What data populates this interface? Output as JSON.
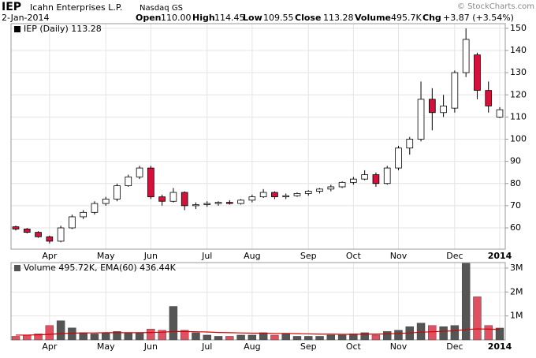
{
  "header": {
    "symbol": "IEP",
    "company": "Icahn Enterprises L.P.",
    "exchange": "Nasdaq GS",
    "copyright": "© StockCharts.com",
    "date": "2-Jan-2014",
    "open_label": "Open",
    "open": "110.00",
    "high_label": "High",
    "high": "114.45",
    "low_label": "Low",
    "low": "109.55",
    "close_label": "Close",
    "close": "113.28",
    "volume_label": "Volume",
    "volume": "495.7K",
    "chg_label": "Chg",
    "chg": "+3.87 (+3.54%)"
  },
  "chart_data": [
    {
      "type": "candlestick",
      "legend": "IEP (Daily) 113.28",
      "categories": [
        null,
        null,
        null,
        "Apr",
        null,
        null,
        null,
        null,
        "May",
        null,
        null,
        null,
        "Jun",
        null,
        null,
        null,
        null,
        "Jul",
        null,
        null,
        null,
        "Aug",
        null,
        null,
        null,
        null,
        "Sep",
        null,
        null,
        null,
        "Oct",
        null,
        null,
        null,
        "Nov",
        null,
        null,
        null,
        null,
        "Dec",
        null,
        null,
        null,
        "2014"
      ],
      "open": [
        60.5,
        59.5,
        58,
        56,
        54,
        60,
        65,
        67,
        71,
        73,
        79,
        83,
        87,
        74,
        72,
        76,
        70,
        70.5,
        71,
        71.5,
        71,
        72.5,
        74,
        76,
        74,
        74.5,
        75.5,
        76.5,
        77.5,
        78.5,
        80.5,
        82,
        84,
        80,
        87,
        96,
        100,
        118,
        112,
        114,
        130,
        138,
        122,
        110
      ],
      "high": [
        61,
        60,
        58.5,
        56.5,
        61,
        66,
        68,
        72,
        74,
        80,
        84,
        88,
        88,
        75,
        78,
        76.5,
        71.5,
        72,
        72,
        72.5,
        73,
        75,
        77.5,
        76.5,
        75.5,
        76,
        77,
        78,
        79.5,
        81,
        83,
        86,
        85,
        88,
        97,
        101,
        126,
        123,
        120,
        131,
        150,
        139,
        126,
        114.45
      ],
      "low": [
        58.8,
        57.5,
        55.5,
        53,
        53.5,
        59.5,
        64,
        66,
        70,
        72,
        78.5,
        82,
        73,
        70,
        71.5,
        68,
        68.5,
        69.5,
        70,
        70.5,
        70.5,
        71.5,
        73.5,
        73,
        73,
        74,
        74.5,
        75.5,
        76.5,
        78,
        79.5,
        81.5,
        78.5,
        79.5,
        86,
        93,
        99,
        104,
        110,
        112,
        128,
        118,
        112,
        109.55
      ],
      "close": [
        59.5,
        58,
        56,
        54,
        60,
        65,
        67,
        71,
        73,
        79,
        83,
        87,
        74,
        72,
        76,
        70,
        70.5,
        71,
        71.5,
        71,
        72.5,
        74,
        76,
        74,
        74.5,
        75.5,
        76.5,
        77.5,
        78.5,
        80.5,
        82,
        84,
        80,
        87,
        96,
        100,
        118,
        112,
        115,
        130,
        145,
        122,
        115,
        113.28
      ],
      "up_color": "#ffffff",
      "down_color": "#d6103a",
      "outline_color": "#000000",
      "ylim": [
        50.4,
        152.1
      ],
      "yticks": [
        60,
        70,
        80,
        90,
        100,
        110,
        120,
        130,
        140,
        150
      ],
      "grid": true
    },
    {
      "type": "volume",
      "legend": "Volume 495.72K, EMA(60) 436.44K",
      "categories": [
        null,
        null,
        null,
        "Apr",
        null,
        null,
        null,
        null,
        "May",
        null,
        null,
        null,
        "Jun",
        null,
        null,
        null,
        null,
        "Jul",
        null,
        null,
        null,
        "Aug",
        null,
        null,
        null,
        null,
        "Sep",
        null,
        null,
        null,
        "Oct",
        null,
        null,
        null,
        "Nov",
        null,
        null,
        null,
        null,
        "Dec",
        null,
        null,
        null,
        "2014"
      ],
      "values": [
        150000,
        200000,
        250000,
        600000,
        800000,
        500000,
        300000,
        250000,
        300000,
        350000,
        300000,
        300000,
        450000,
        400000,
        1400000,
        400000,
        300000,
        200000,
        150000,
        150000,
        200000,
        200000,
        300000,
        200000,
        250000,
        150000,
        150000,
        150000,
        200000,
        200000,
        250000,
        300000,
        200000,
        350000,
        400000,
        550000,
        700000,
        600000,
        550000,
        600000,
        3200000,
        1800000,
        600000,
        495720
      ],
      "ema": [
        200000,
        200000,
        210000,
        230000,
        260000,
        280000,
        290000,
        290000,
        300000,
        300000,
        300000,
        300000,
        310000,
        320000,
        350000,
        350000,
        340000,
        330000,
        310000,
        300000,
        290000,
        280000,
        280000,
        270000,
        270000,
        260000,
        250000,
        240000,
        240000,
        230000,
        230000,
        240000,
        240000,
        250000,
        270000,
        290000,
        320000,
        340000,
        360000,
        380000,
        430000,
        460000,
        450000,
        436440
      ],
      "up_color": "#555555",
      "down_color": "#e05060",
      "ema_color": "#d00000",
      "ylim": [
        0,
        3230000
      ],
      "yticks": [
        {
          "value": 1000000,
          "label": "1M"
        },
        {
          "value": 2000000,
          "label": "2M"
        },
        {
          "value": 3000000,
          "label": "3M"
        }
      ],
      "grid": true
    }
  ]
}
